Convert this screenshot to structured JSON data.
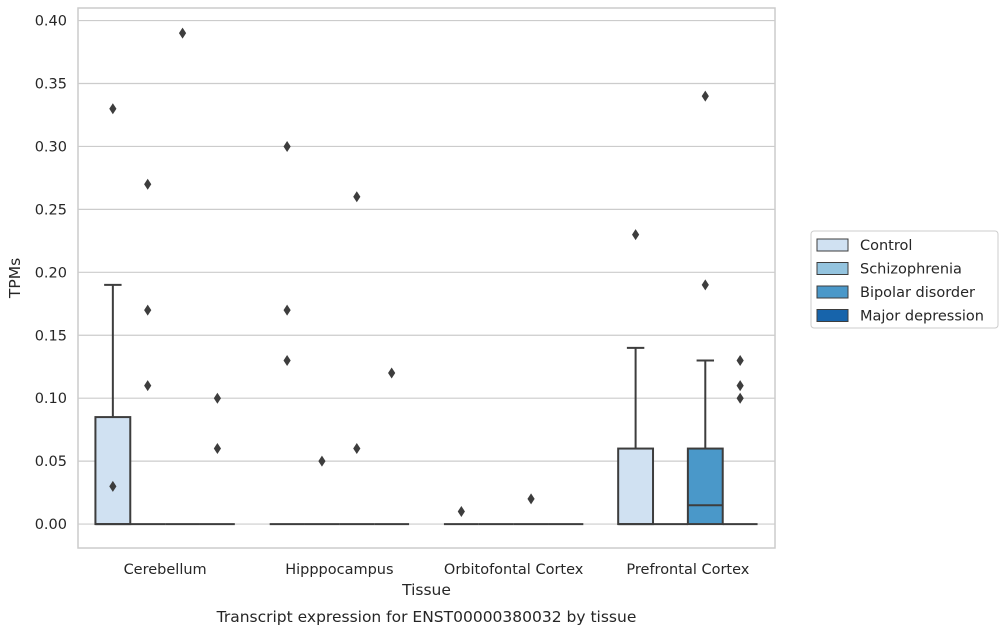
{
  "chart_data": {
    "type": "box",
    "title": "Transcript expression for ENST00000380032 by tissue",
    "xlabel": "Tissue",
    "ylabel": "TPMs",
    "categories": [
      "Cerebellum",
      "Hipppocampus",
      "Orbitofontal Cortex",
      "Prefrontal Cortex"
    ],
    "ylim": [
      -0.019,
      0.41
    ],
    "yticks": [
      "0.00",
      "0.05",
      "0.10",
      "0.15",
      "0.20",
      "0.25",
      "0.30",
      "0.35",
      "0.40"
    ],
    "grid": true,
    "legend_position": "right",
    "series": [
      {
        "name": "Control",
        "color": "#d0e1f2",
        "boxes": [
          {
            "q1": 0,
            "median": 0,
            "q3": 0.085,
            "whislo": 0,
            "whishi": 0.19,
            "fliers": [
              0.03,
              0.33
            ]
          },
          {
            "q1": 0,
            "median": 0,
            "q3": 0,
            "whislo": 0,
            "whishi": 0,
            "fliers": [
              0.13,
              0.17,
              0.3
            ]
          },
          {
            "q1": 0,
            "median": 0,
            "q3": 0,
            "whislo": 0,
            "whishi": 0,
            "fliers": [
              0.01
            ]
          },
          {
            "q1": 0,
            "median": 0,
            "q3": 0.06,
            "whislo": 0,
            "whishi": 0.14,
            "fliers": [
              0.23
            ]
          }
        ]
      },
      {
        "name": "Schizophrenia",
        "color": "#94c4df",
        "boxes": [
          {
            "q1": 0,
            "median": 0,
            "q3": 0,
            "whislo": 0,
            "whishi": 0,
            "fliers": [
              0.11,
              0.17,
              0.27
            ]
          },
          {
            "q1": 0,
            "median": 0,
            "q3": 0,
            "whislo": 0,
            "whishi": 0,
            "fliers": [
              0.05
            ]
          },
          {
            "q1": 0,
            "median": 0,
            "q3": 0,
            "whislo": 0,
            "whishi": 0,
            "fliers": []
          },
          {
            "q1": 0,
            "median": 0,
            "q3": 0,
            "whislo": 0,
            "whishi": 0,
            "fliers": []
          }
        ]
      },
      {
        "name": "Bipolar disorder",
        "color": "#4a98c9",
        "boxes": [
          {
            "q1": 0,
            "median": 0,
            "q3": 0,
            "whislo": 0,
            "whishi": 0,
            "fliers": [
              0.39
            ]
          },
          {
            "q1": 0,
            "median": 0,
            "q3": 0,
            "whislo": 0,
            "whishi": 0,
            "fliers": [
              0.06,
              0.26
            ]
          },
          {
            "q1": 0,
            "median": 0,
            "q3": 0,
            "whislo": 0,
            "whishi": 0,
            "fliers": [
              0.02
            ]
          },
          {
            "q1": 0,
            "median": 0.015,
            "q3": 0.06,
            "whislo": 0,
            "whishi": 0.13,
            "fliers": [
              0.19,
              0.34
            ]
          }
        ]
      },
      {
        "name": "Major depression",
        "color": "#1764ab",
        "boxes": [
          {
            "q1": 0,
            "median": 0,
            "q3": 0,
            "whislo": 0,
            "whishi": 0,
            "fliers": [
              0.06,
              0.1
            ]
          },
          {
            "q1": 0,
            "median": 0,
            "q3": 0,
            "whislo": 0,
            "whishi": 0,
            "fliers": [
              0.12
            ]
          },
          {
            "q1": 0,
            "median": 0,
            "q3": 0,
            "whislo": 0,
            "whishi": 0,
            "fliers": []
          },
          {
            "q1": 0,
            "median": 0,
            "q3": 0,
            "whislo": 0,
            "whishi": 0,
            "fliers": [
              0.1,
              0.11,
              0.13
            ]
          }
        ]
      }
    ]
  }
}
